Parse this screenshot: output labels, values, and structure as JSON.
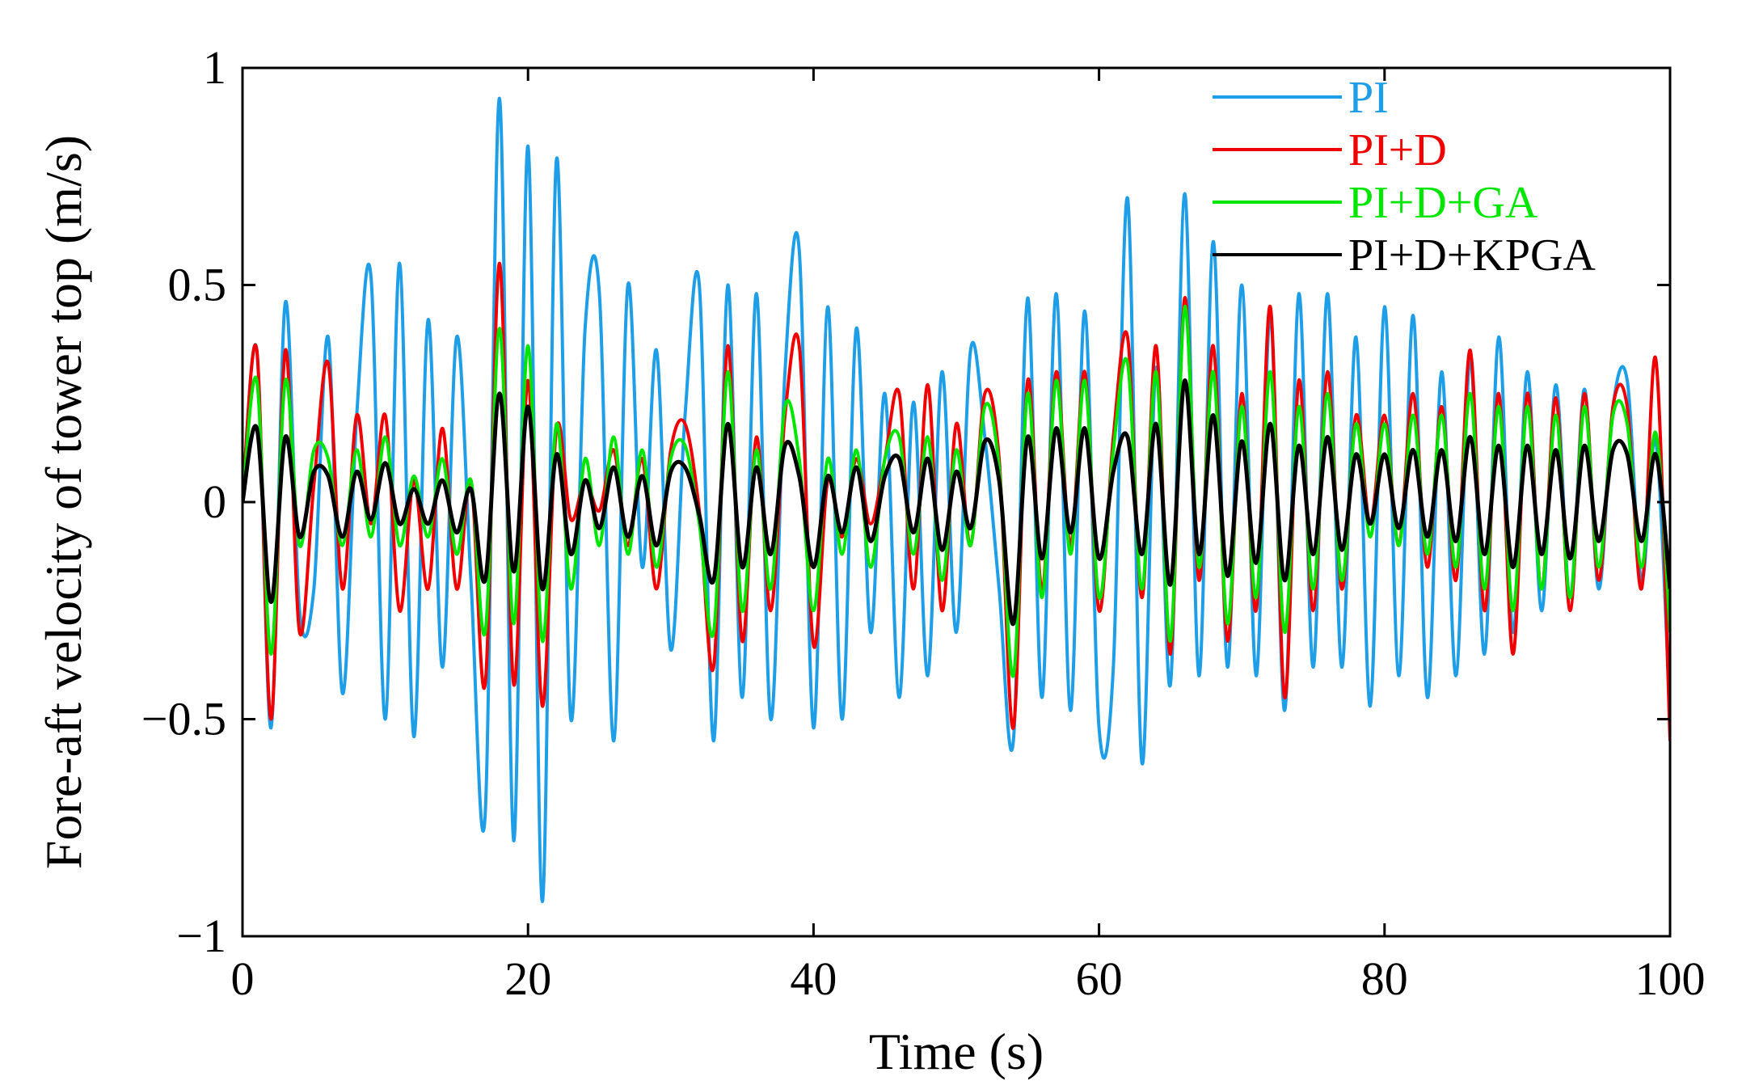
{
  "chart_data": {
    "type": "line",
    "title": "",
    "xlabel": "Time (s)",
    "ylabel": "Fore-aft velocity of tower top  (m/s)",
    "xlim": [
      0,
      100
    ],
    "ylim": [
      -1,
      1
    ],
    "xticks": [
      0,
      20,
      40,
      60,
      80,
      100
    ],
    "yticks": [
      -1,
      -0.5,
      0,
      0.5,
      1
    ],
    "ytick_labels": [
      "−1",
      "−0.5",
      "0",
      "0.5",
      "1"
    ],
    "grid": false,
    "legend_position": "top-right",
    "x": [
      0,
      1,
      2,
      3,
      4,
      5,
      6,
      7,
      8,
      9,
      10,
      11,
      12,
      13,
      14,
      15,
      16,
      17,
      18,
      19,
      20,
      21,
      22,
      23,
      24,
      25,
      26,
      27,
      28,
      29,
      30,
      31,
      32,
      33,
      34,
      35,
      36,
      37,
      38,
      39,
      40,
      41,
      42,
      43,
      44,
      45,
      46,
      47,
      48,
      49,
      50,
      51,
      52,
      53,
      54,
      55,
      56,
      57,
      58,
      59,
      60,
      61,
      62,
      63,
      64,
      65,
      66,
      67,
      68,
      69,
      70,
      71,
      72,
      73,
      74,
      75,
      76,
      77,
      78,
      79,
      80,
      81,
      82,
      83,
      84,
      85,
      86,
      87,
      88,
      89,
      90,
      91,
      92,
      93,
      94,
      95,
      96,
      97,
      98,
      99,
      100
    ],
    "series": [
      {
        "name": "PI",
        "color": "#1f9ee8",
        "values": [
          0,
          0.35,
          -0.52,
          0.46,
          -0.25,
          -0.2,
          0.38,
          -0.44,
          0.2,
          0.52,
          -0.5,
          0.55,
          -0.54,
          0.42,
          -0.38,
          0.38,
          -0.18,
          -0.72,
          0.93,
          -0.78,
          0.82,
          -0.92,
          0.79,
          -0.5,
          0.4,
          0.48,
          -0.55,
          0.5,
          -0.15,
          0.35,
          -0.34,
          0.2,
          0.5,
          -0.55,
          0.5,
          -0.45,
          0.48,
          -0.5,
          0.3,
          0.58,
          -0.52,
          0.45,
          -0.5,
          0.4,
          -0.3,
          0.25,
          -0.45,
          0.23,
          -0.4,
          0.3,
          -0.3,
          0.35,
          0.15,
          -0.2,
          -0.55,
          0.47,
          -0.45,
          0.48,
          -0.48,
          0.44,
          -0.52,
          -0.38,
          0.7,
          -0.6,
          0.31,
          -0.42,
          0.71,
          -0.4,
          0.6,
          -0.38,
          0.5,
          -0.4,
          0.43,
          -0.48,
          0.48,
          -0.38,
          0.48,
          -0.38,
          0.38,
          -0.47,
          0.45,
          -0.4,
          0.43,
          -0.45,
          0.3,
          -0.4,
          0.33,
          -0.35,
          0.38,
          -0.3,
          0.3,
          -0.25,
          0.27,
          -0.22,
          0.26,
          -0.2,
          0.22,
          0.28,
          -0.18,
          0.14,
          -0.5
        ]
      },
      {
        "name": "PI+D",
        "color": "#f00000",
        "values": [
          0,
          0.35,
          -0.5,
          0.35,
          -0.3,
          0.04,
          0.32,
          -0.2,
          0.2,
          -0.05,
          0.2,
          -0.25,
          0.05,
          -0.2,
          0.17,
          -0.2,
          0.05,
          -0.42,
          0.55,
          -0.42,
          0.28,
          -0.47,
          0.17,
          -0.04,
          0.05,
          -0.02,
          0.12,
          -0.1,
          0.1,
          -0.2,
          0.12,
          0.18,
          -0.02,
          -0.38,
          0.36,
          -0.32,
          0.15,
          -0.25,
          0.2,
          0.36,
          -0.33,
          0.05,
          -0.08,
          0.1,
          -0.05,
          0.1,
          0.25,
          -0.2,
          0.27,
          -0.25,
          0.18,
          -0.1,
          0.25,
          0.1,
          -0.52,
          0.28,
          -0.2,
          0.3,
          -0.1,
          0.3,
          -0.25,
          0.15,
          0.38,
          -0.22,
          0.36,
          -0.35,
          0.47,
          -0.18,
          0.36,
          -0.32,
          0.25,
          -0.25,
          0.45,
          -0.45,
          0.28,
          -0.25,
          0.3,
          -0.2,
          0.2,
          -0.05,
          0.2,
          -0.1,
          0.25,
          -0.15,
          0.22,
          -0.18,
          0.35,
          -0.25,
          0.25,
          -0.35,
          0.25,
          -0.2,
          0.24,
          -0.25,
          0.25,
          -0.18,
          0.22,
          0.22,
          -0.2,
          0.33,
          -0.55
        ]
      },
      {
        "name": "PI+D+GA",
        "color": "#00e600",
        "values": [
          0,
          0.28,
          -0.35,
          0.28,
          -0.1,
          0.12,
          0.1,
          -0.1,
          0.12,
          -0.08,
          0.15,
          -0.1,
          0.06,
          -0.08,
          0.1,
          -0.12,
          0.05,
          -0.3,
          0.4,
          -0.28,
          0.36,
          -0.32,
          0.18,
          -0.2,
          0.1,
          -0.1,
          0.15,
          -0.12,
          0.12,
          -0.15,
          0.1,
          0.13,
          -0.05,
          -0.3,
          0.3,
          -0.25,
          0.12,
          -0.2,
          0.22,
          0.1,
          -0.25,
          0.1,
          -0.12,
          0.12,
          -0.15,
          0.1,
          0.15,
          -0.12,
          0.15,
          -0.18,
          0.12,
          -0.1,
          0.22,
          0.08,
          -0.4,
          0.25,
          -0.22,
          0.28,
          -0.12,
          0.28,
          -0.22,
          0.12,
          0.32,
          -0.2,
          0.3,
          -0.32,
          0.45,
          -0.15,
          0.3,
          -0.28,
          0.22,
          -0.22,
          0.3,
          -0.3,
          0.22,
          -0.2,
          0.25,
          -0.18,
          0.18,
          -0.08,
          0.18,
          -0.1,
          0.2,
          -0.12,
          0.2,
          -0.15,
          0.25,
          -0.2,
          0.22,
          -0.25,
          0.22,
          -0.2,
          0.2,
          -0.22,
          0.22,
          -0.15,
          0.2,
          0.18,
          -0.15,
          0.16,
          -0.3
        ]
      },
      {
        "name": "PI+D+KPGA",
        "color": "#000000",
        "values": [
          0,
          0.17,
          -0.23,
          0.15,
          -0.08,
          0.07,
          0.06,
          -0.08,
          0.07,
          -0.04,
          0.09,
          -0.05,
          0.03,
          -0.05,
          0.05,
          -0.07,
          0.03,
          -0.18,
          0.25,
          -0.16,
          0.22,
          -0.2,
          0.11,
          -0.12,
          0.05,
          -0.06,
          0.08,
          -0.08,
          0.06,
          -0.1,
          0.07,
          0.08,
          -0.03,
          -0.18,
          0.18,
          -0.15,
          0.08,
          -0.12,
          0.13,
          0.06,
          -0.15,
          0.06,
          -0.07,
          0.08,
          -0.09,
          0.06,
          0.1,
          -0.07,
          0.1,
          -0.11,
          0.07,
          -0.06,
          0.14,
          0.05,
          -0.28,
          0.15,
          -0.13,
          0.17,
          -0.07,
          0.17,
          -0.13,
          0.07,
          0.15,
          -0.12,
          0.18,
          -0.19,
          0.28,
          -0.12,
          0.2,
          -0.17,
          0.14,
          -0.14,
          0.18,
          -0.18,
          0.13,
          -0.12,
          0.15,
          -0.11,
          0.11,
          -0.05,
          0.11,
          -0.06,
          0.12,
          -0.08,
          0.12,
          -0.09,
          0.15,
          -0.12,
          0.13,
          -0.15,
          0.13,
          -0.12,
          0.12,
          -0.13,
          0.13,
          -0.09,
          0.12,
          0.11,
          -0.09,
          0.11,
          -0.2
        ]
      }
    ]
  }
}
